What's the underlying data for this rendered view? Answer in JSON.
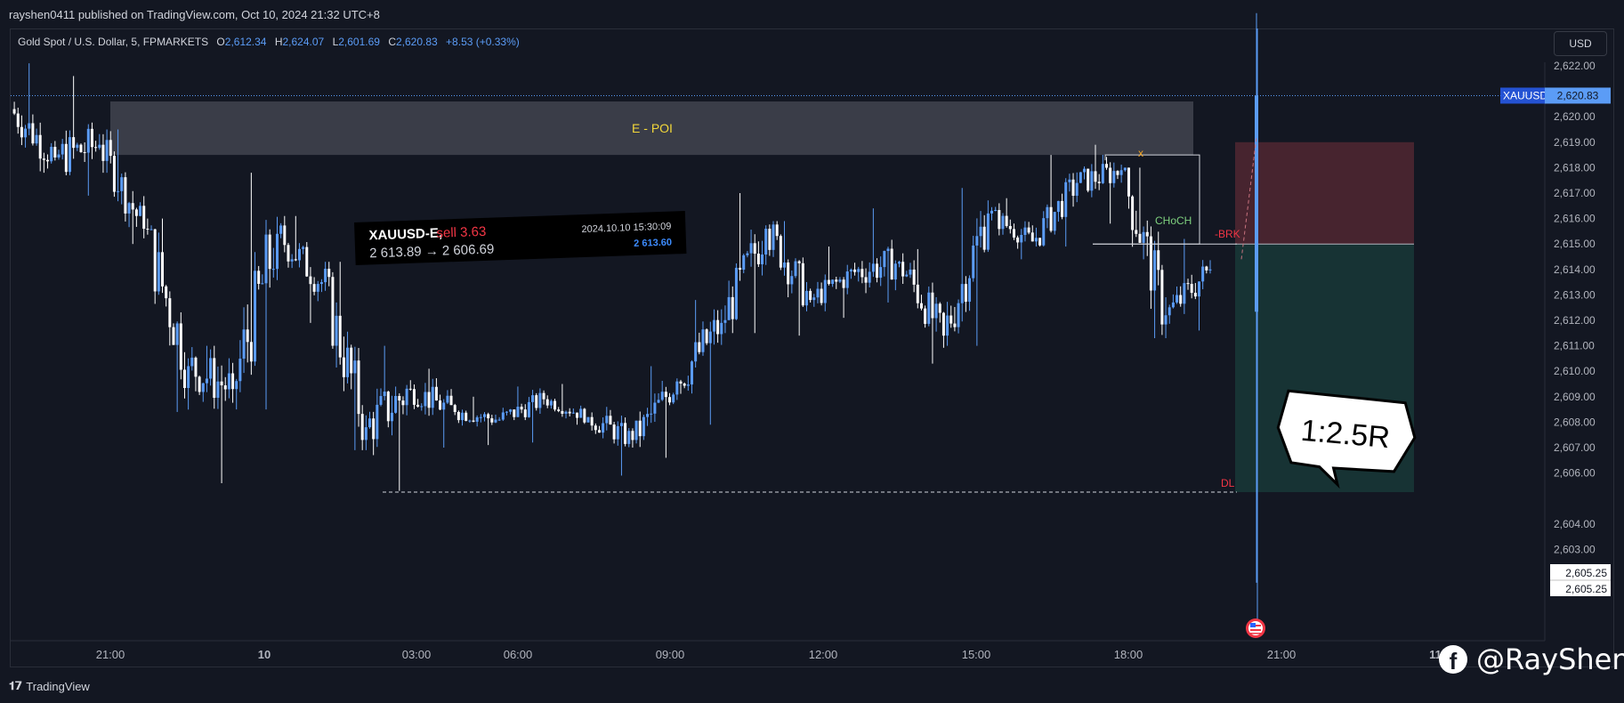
{
  "publisher_line": "rayshen0411 published on TradingView.com, Oct 10, 2024 21:32 UTC+8",
  "symbol_title": "Gold Spot / U.S. Dollar, 5, FPMARKETS",
  "ohlc": {
    "o_label": "O",
    "o": "2,612.34",
    "h_label": "H",
    "h": "2,624.07",
    "l_label": "L",
    "l": "2,601.69",
    "c_label": "C",
    "c": "2,620.83",
    "change": "+8.53 (+0.33%)"
  },
  "currency_button": "USD",
  "price_badge": {
    "symbol": "XAUUSD",
    "price": "2,620.83"
  },
  "dl_labels": [
    "2,605.25",
    "2,605.25"
  ],
  "watermark": "TradingView",
  "social": {
    "icon": "facebook-icon",
    "handle": "@RayShen"
  },
  "colors": {
    "background": "#131722",
    "up": "#5b9cf6",
    "down": "#ffffff",
    "stop_zone": "#4a2530",
    "target_zone": "#173536",
    "poi_zone": "#3c3f4b"
  },
  "annotations": {
    "poi": "E - POI",
    "choch": "CHoCH",
    "brk": "-BRK",
    "dl": "DL",
    "x_mark": "x",
    "rr": "1:2.5R"
  },
  "trade_card": {
    "symbol": "XAUUSD-E,",
    "side": "sell 3.63",
    "prices": "2 613.89 → 2 606.69",
    "time": "2024.10.10 15:30:09",
    "current": "2 613.60"
  },
  "chart_data": {
    "type": "candlestick",
    "title": "",
    "xlabel": "",
    "ylabel": "",
    "y_axis_currency": "USD",
    "ylim": [
      2603,
      2623
    ],
    "y_ticks": [
      "2,603.00",
      "2,604.00",
      "2,606.00",
      "2,607.00",
      "2,608.00",
      "2,609.00",
      "2,610.00",
      "2,611.00",
      "2,612.00",
      "2,613.00",
      "2,614.00",
      "2,615.00",
      "2,616.00",
      "2,617.00",
      "2,618.00",
      "2,619.00",
      "2,620.00",
      "2,622.00"
    ],
    "x_ticks": [
      "21:00",
      "10",
      "03:00",
      "06:00",
      "09:00",
      "12:00",
      "15:00",
      "18:00",
      "21:00",
      "11"
    ],
    "series": [
      {
        "values": [
          {
            "t": "Oct 9 19:00",
            "o": 2620.3,
            "h": 2622.1,
            "l": 2617.8,
            "c": 2618.4
          },
          {
            "t": "Oct 9 20:00",
            "o": 2618.4,
            "h": 2621.6,
            "l": 2616.9,
            "c": 2618.9
          },
          {
            "t": "Oct 9 21:00",
            "o": 2618.9,
            "h": 2619.5,
            "l": 2615.0,
            "c": 2615.6
          },
          {
            "t": "Oct 9 22:00",
            "o": 2615.6,
            "h": 2616.0,
            "l": 2608.4,
            "c": 2610.2
          },
          {
            "t": "Oct 9 23:00",
            "o": 2610.2,
            "h": 2611.0,
            "l": 2605.6,
            "c": 2609.3
          },
          {
            "t": "Oct 10 00:00",
            "o": 2609.3,
            "h": 2617.8,
            "l": 2608.5,
            "c": 2615.4
          },
          {
            "t": "Oct 10 01:00",
            "o": 2615.4,
            "h": 2616.1,
            "l": 2611.9,
            "c": 2613.5
          },
          {
            "t": "Oct 10 02:00",
            "o": 2613.5,
            "h": 2614.3,
            "l": 2606.9,
            "c": 2607.8
          },
          {
            "t": "Oct 10 03:00",
            "o": 2607.8,
            "h": 2611.0,
            "l": 2605.3,
            "c": 2609.3
          },
          {
            "t": "Oct 10 04:00",
            "o": 2609.3,
            "h": 2610.1,
            "l": 2607.0,
            "c": 2608.4
          },
          {
            "t": "Oct 10 05:00",
            "o": 2608.4,
            "h": 2609.0,
            "l": 2607.1,
            "c": 2608.1
          },
          {
            "t": "Oct 10 06:00",
            "o": 2608.1,
            "h": 2609.4,
            "l": 2607.2,
            "c": 2608.9
          },
          {
            "t": "Oct 10 07:00",
            "o": 2608.9,
            "h": 2609.5,
            "l": 2607.9,
            "c": 2608.2
          },
          {
            "t": "Oct 10 08:00",
            "o": 2608.2,
            "h": 2608.6,
            "l": 2605.9,
            "c": 2607.3
          },
          {
            "t": "Oct 10 09:00",
            "o": 2607.3,
            "h": 2610.2,
            "l": 2606.6,
            "c": 2609.6
          },
          {
            "t": "Oct 10 10:00",
            "o": 2609.6,
            "h": 2612.8,
            "l": 2607.9,
            "c": 2611.9
          },
          {
            "t": "Oct 10 11:00",
            "o": 2611.9,
            "h": 2617.0,
            "l": 2611.5,
            "c": 2615.6
          },
          {
            "t": "Oct 10 12:00",
            "o": 2615.6,
            "h": 2615.9,
            "l": 2611.4,
            "c": 2612.8
          },
          {
            "t": "Oct 10 13:00",
            "o": 2612.8,
            "h": 2614.9,
            "l": 2612.1,
            "c": 2613.9
          },
          {
            "t": "Oct 10 14:00",
            "o": 2613.9,
            "h": 2616.4,
            "l": 2612.7,
            "c": 2614.3
          },
          {
            "t": "Oct 10 15:00",
            "o": 2614.3,
            "h": 2614.8,
            "l": 2610.3,
            "c": 2611.4
          },
          {
            "t": "Oct 10 16:00",
            "o": 2611.4,
            "h": 2617.2,
            "l": 2611.0,
            "c": 2616.2
          },
          {
            "t": "Oct 10 17:00",
            "o": 2616.2,
            "h": 2616.8,
            "l": 2614.4,
            "c": 2615.1
          },
          {
            "t": "Oct 10 18:00",
            "o": 2615.1,
            "h": 2618.5,
            "l": 2614.9,
            "c": 2617.4
          },
          {
            "t": "Oct 10 19:00",
            "o": 2617.4,
            "h": 2618.9,
            "l": 2615.8,
            "c": 2617.9
          },
          {
            "t": "Oct 10 20:00",
            "o": 2617.9,
            "h": 2618.0,
            "l": 2611.3,
            "c": 2612.2
          },
          {
            "t": "Oct 10 20:30",
            "o": 2612.2,
            "h": 2615.2,
            "l": 2611.6,
            "c": 2614.0
          },
          {
            "t": "Oct 10 21:00",
            "o": 2612.34,
            "h": 2624.07,
            "l": 2601.69,
            "c": 2620.83
          }
        ]
      }
    ],
    "levels": {
      "poi": [
        2618.5,
        2620.6
      ],
      "choch": 2615.0,
      "choch_high": 2618.5,
      "dl": 2605.25,
      "last_price": 2620.83,
      "entry": 2615.0,
      "stop": 2619.0,
      "target": 2605.25
    },
    "grid": false,
    "legend": "top-left"
  }
}
